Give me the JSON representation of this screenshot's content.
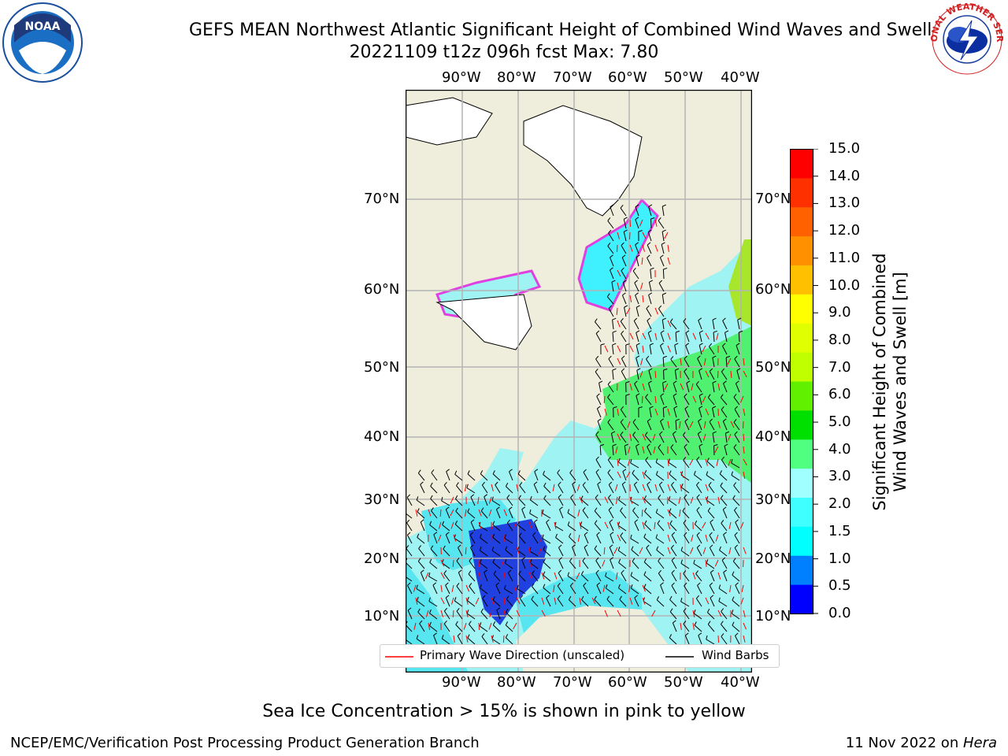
{
  "title": {
    "line1": "GEFS MEAN Northwest Atlantic Significant Height of Combined Wind Waves and Swell",
    "line2": "20221109 t12z 096h fcst   Max: 7.80"
  },
  "logos": {
    "left": "NOAA",
    "right_text": "NATIONAL WEATHER SERVICE"
  },
  "map": {
    "lon_labels": [
      "90°W",
      "80°W",
      "70°W",
      "60°W",
      "50°W",
      "40°W"
    ],
    "lat_labels": [
      "70°N",
      "60°N",
      "50°N",
      "40°N",
      "30°N",
      "20°N",
      "10°N"
    ]
  },
  "legend": {
    "wave_dir": "Primary Wave Direction (unscaled)",
    "wind_barbs": "Wind Barbs",
    "wave_color": "#ff0000",
    "barb_color": "#000000"
  },
  "colorbar": {
    "label_line1": "Significant Height of Combined",
    "label_line2": "Wind Waves and Swell [m]",
    "ticks": [
      "0.0",
      "0.5",
      "1.0",
      "1.5",
      "2.0",
      "3.0",
      "4.0",
      "5.0",
      "6.0",
      "7.0",
      "8.0",
      "9.0",
      "10.0",
      "11.0",
      "12.0",
      "13.0",
      "14.0",
      "15.0"
    ],
    "colors": [
      "#0000ff",
      "#0080ff",
      "#00ffff",
      "#40ffff",
      "#a0ffff",
      "#50ff80",
      "#00e000",
      "#60f000",
      "#c0ff00",
      "#e0ff00",
      "#ffff00",
      "#ffc000",
      "#ff9000",
      "#ff6000",
      "#ff3000",
      "#ff0000"
    ]
  },
  "footer": {
    "note": "Sea Ice Concentration > 15% is shown in pink to yellow",
    "left": "NCEP/EMC/Verification Post Processing Product Generation Branch",
    "date": "11 Nov 2022 on ",
    "host": "Hera"
  }
}
